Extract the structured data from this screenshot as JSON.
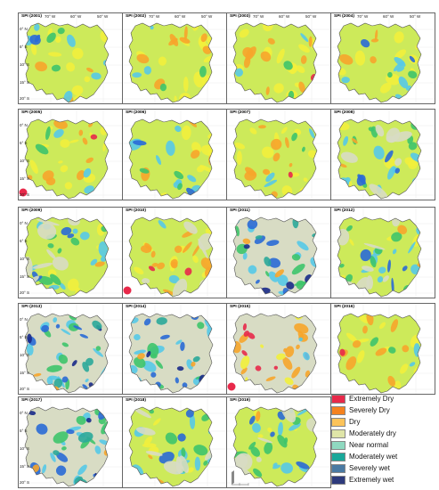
{
  "map": {
    "lon_labels": [
      "70° W",
      "60° W",
      "50° W"
    ],
    "lat_labels": [
      "0° N",
      "5° S",
      "10° S",
      "15° S",
      "20° S"
    ],
    "panels": [
      {
        "title": "SPI (2001)",
        "theme": "mixed"
      },
      {
        "title": "SPI (2002)",
        "theme": "dryish"
      },
      {
        "title": "SPI (2003)",
        "theme": "dryish"
      },
      {
        "title": "SPI (2004)",
        "theme": "mixed"
      },
      {
        "title": "SPI (2005)",
        "theme": "dryish",
        "marker": true
      },
      {
        "title": "SPI (2006)",
        "theme": "mixed"
      },
      {
        "title": "SPI (2007)",
        "theme": "dryish"
      },
      {
        "title": "SPI (2008)",
        "theme": "wettish"
      },
      {
        "title": "SPI (2009)",
        "theme": "wettish"
      },
      {
        "title": "SPI (2010)",
        "theme": "dry",
        "marker": true
      },
      {
        "title": "SPI (2011)",
        "theme": "wet"
      },
      {
        "title": "SPI (2012)",
        "theme": "wettish"
      },
      {
        "title": "SPI (2013)",
        "theme": "wet"
      },
      {
        "title": "SPI (2014)",
        "theme": "wet"
      },
      {
        "title": "SPI (2015)",
        "theme": "verydry",
        "marker": true
      },
      {
        "title": "SPI (2016)",
        "theme": "dryish"
      },
      {
        "title": "SPI (2017)",
        "theme": "wet"
      },
      {
        "title": "SPI (2018)",
        "theme": "wettish"
      },
      {
        "title": "SPI (2019)",
        "theme": "wettish"
      }
    ]
  },
  "legend": [
    {
      "label": "Extremely Dry",
      "color": "#e8294a"
    },
    {
      "label": "Severely Dry",
      "color": "#f5821f"
    },
    {
      "label": "Dry",
      "color": "#fcc35a"
    },
    {
      "label": "Moderately dry",
      "color": "#dfe5a8"
    },
    {
      "label": "Near normal",
      "color": "#8fd9c0"
    },
    {
      "label": "Moderately wet",
      "color": "#1aa89a"
    },
    {
      "label": "Severely wet",
      "color": "#4a7aa3"
    },
    {
      "label": "Extremely wet",
      "color": "#2d3a7c"
    }
  ],
  "palette": {
    "base": "#cdea5a",
    "yellow": "#f2ef3c",
    "orange": "#f7a52b",
    "red": "#e8294a",
    "cyan": "#56c9e8",
    "blue": "#2a6ad6",
    "navy": "#1a2a8a",
    "green": "#3ec46b",
    "teal": "#2ba89a",
    "gray": "#d8dcc4",
    "marker": "#e8294a"
  }
}
